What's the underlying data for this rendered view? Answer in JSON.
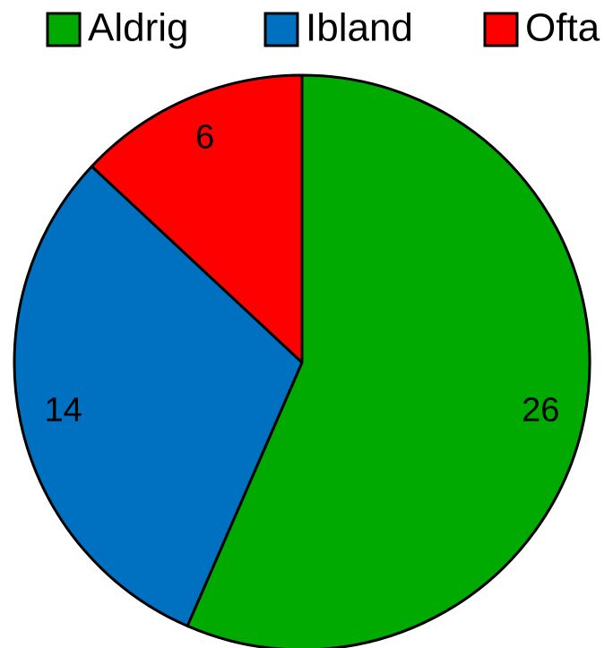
{
  "chart_data": {
    "type": "pie",
    "categories": [
      "Aldrig",
      "Ibland",
      "Ofta"
    ],
    "values": [
      26,
      14,
      6
    ],
    "colors": [
      "#00aa00",
      "#0070c0",
      "#ff0000"
    ],
    "legend": "top"
  }
}
